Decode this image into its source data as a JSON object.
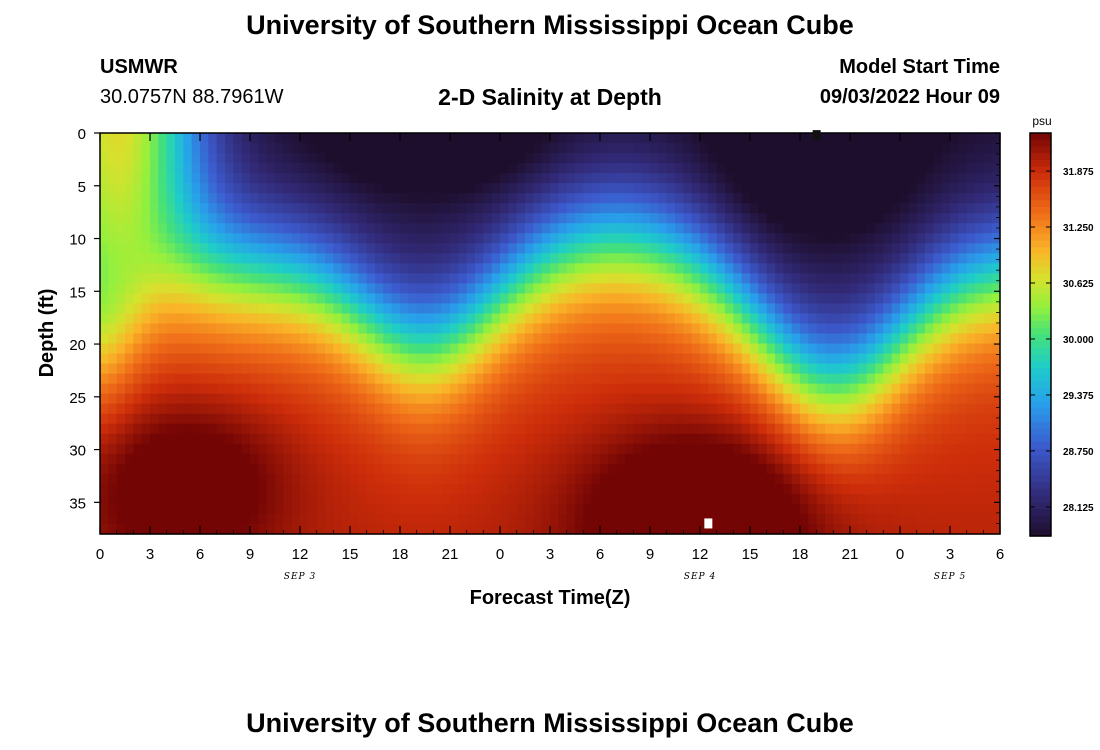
{
  "page_title": "University of Southern Mississippi Ocean Cube",
  "page_title_bottom": "University of Southern Mississippi Ocean Cube",
  "station": {
    "name": "USMWR",
    "coordinates": "30.0757N  88.7961W"
  },
  "model_start": {
    "label": "Model Start Time",
    "value": "09/03/2022 Hour 09"
  },
  "chart_data": {
    "type": "heatmap",
    "title": "2-D Salinity at Depth",
    "xlabel": "Forecast Time(Z)",
    "ylabel": "Depth (ft)",
    "x_unit": "hours from 00Z SEP 3",
    "xlim": [
      0,
      54
    ],
    "ylim": [
      0,
      38
    ],
    "y_inverted": true,
    "x_tick_labels": [
      "0",
      "3",
      "6",
      "9",
      "12",
      "15",
      "18",
      "21",
      "0",
      "3",
      "6",
      "9",
      "12",
      "15",
      "18",
      "21",
      "0",
      "3",
      "6"
    ],
    "y_ticks": [
      0,
      5,
      10,
      15,
      20,
      25,
      30,
      35
    ],
    "date_labels": [
      {
        "hour": 12,
        "label": "SEP 3"
      },
      {
        "hour": 36,
        "label": "SEP 4"
      },
      {
        "hour": 51,
        "label": "SEP 5"
      }
    ],
    "colorbar": {
      "unit": "psu",
      "min": 27.8,
      "max": 32.3,
      "tick_labels": [
        "31.875",
        "31.250",
        "30.625",
        "30.000",
        "29.375",
        "28.750",
        "28.125"
      ],
      "tick_values": [
        31.875,
        31.25,
        30.625,
        30.0,
        29.375,
        28.75,
        28.125
      ]
    },
    "field_description": "salinity minimum near surface, maximum near bottom; low-salinity bulge deepens to ~20 ft near hour 19 and ~24 ft near hour 44",
    "markers": [
      {
        "hour": 43.0,
        "depth": 0.2,
        "color": "#111111"
      },
      {
        "hour": 36.5,
        "depth": 37.0,
        "color": "#ffffff"
      }
    ]
  }
}
